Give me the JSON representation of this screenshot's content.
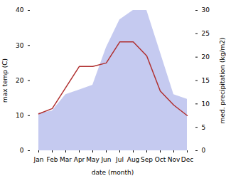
{
  "chart_data": {
    "type": "line",
    "xlabel": "date (month)",
    "ylabel": "max temp (C)",
    "y2label": "med. precipitation (kg/m2)",
    "categories": [
      "Jan",
      "Feb",
      "Mar",
      "Apr",
      "May",
      "Jun",
      "Jul",
      "Aug",
      "Sep",
      "Oct",
      "Nov",
      "Dec"
    ],
    "series": [
      {
        "type": "area",
        "axis": "y2",
        "color": "#c5caf0",
        "values": [
          8.0,
          8.5,
          12.0,
          13.0,
          14.0,
          22.0,
          28.0,
          30.0,
          30.0,
          21.0,
          12.0,
          11.0
        ]
      },
      {
        "type": "line",
        "color": "#b03030",
        "values": [
          10.5,
          12.0,
          18.0,
          24.0,
          24.0,
          25.0,
          31.0,
          31.0,
          27.0,
          17.0,
          13.0,
          10.0
        ]
      }
    ],
    "ylim": [
      0,
      40
    ],
    "yticks": [
      0,
      10,
      20,
      30,
      40
    ],
    "y2lim": [
      0,
      30
    ],
    "y2ticks": [
      0,
      5,
      10,
      15,
      20,
      25,
      30
    ],
    "grid": false
  }
}
